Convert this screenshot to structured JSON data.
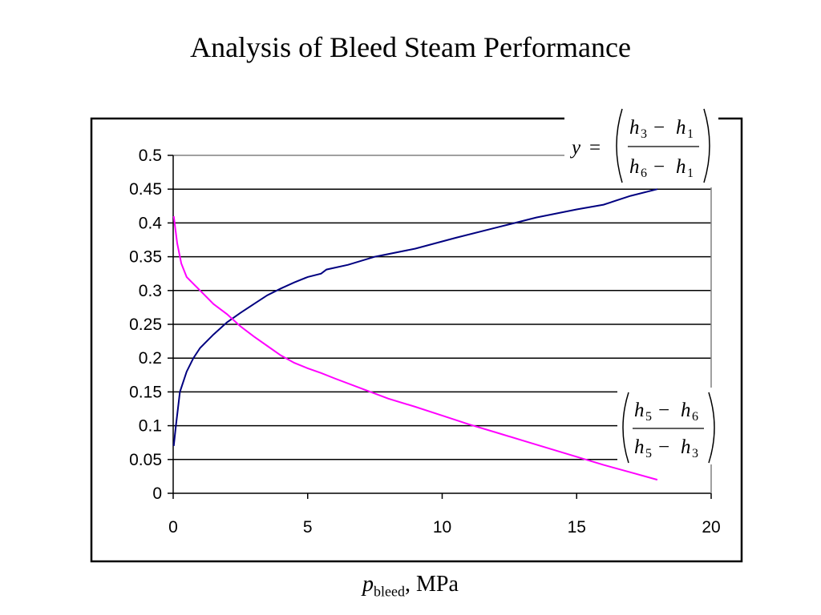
{
  "title": "Analysis of Bleed Steam Performance",
  "xlabel": {
    "var": "p",
    "sub": "bleed",
    "unit": ", MPa"
  },
  "chart_data": {
    "type": "line",
    "title": "Analysis of Bleed Steam Performance",
    "xlabel": "p_bleed, MPa",
    "ylabel": "",
    "xlim": [
      0,
      20
    ],
    "ylim": [
      0,
      0.5
    ],
    "x_ticks": [
      "0",
      "5",
      "10",
      "15",
      "20"
    ],
    "y_ticks": [
      "0",
      "0.05",
      "0.1",
      "0.15",
      "0.2",
      "0.25",
      "0.3",
      "0.35",
      "0.4",
      "0.45",
      "0.5"
    ],
    "grid": "horizontal",
    "series": [
      {
        "color": "#000080",
        "label_text": "y = ((h3 − h1) / (h6 − h1))",
        "points": [
          [
            0.02,
            0.07
          ],
          [
            0.1,
            0.1
          ],
          [
            0.25,
            0.15
          ],
          [
            0.5,
            0.18
          ],
          [
            0.75,
            0.2
          ],
          [
            1.0,
            0.215
          ],
          [
            1.5,
            0.235
          ],
          [
            2.0,
            0.253
          ],
          [
            2.5,
            0.267
          ],
          [
            3.0,
            0.28
          ],
          [
            3.5,
            0.293
          ],
          [
            4.0,
            0.303
          ],
          [
            4.5,
            0.312
          ],
          [
            5.0,
            0.32
          ],
          [
            5.5,
            0.325
          ],
          [
            5.7,
            0.331
          ],
          [
            6.5,
            0.338
          ],
          [
            7.5,
            0.35
          ],
          [
            9.0,
            0.362
          ],
          [
            10.5,
            0.378
          ],
          [
            12.0,
            0.393
          ],
          [
            13.5,
            0.408
          ],
          [
            15.0,
            0.42
          ],
          [
            16.0,
            0.427
          ],
          [
            17.0,
            0.44
          ],
          [
            18.0,
            0.45
          ]
        ]
      },
      {
        "color": "#ff00ff",
        "label_text": "((h5 − h6) / (h5 − h3))",
        "points": [
          [
            0.02,
            0.41
          ],
          [
            0.15,
            0.37
          ],
          [
            0.3,
            0.34
          ],
          [
            0.5,
            0.32
          ],
          [
            0.75,
            0.31
          ],
          [
            1.0,
            0.3
          ],
          [
            1.5,
            0.28
          ],
          [
            2.0,
            0.265
          ],
          [
            2.5,
            0.247
          ],
          [
            3.0,
            0.232
          ],
          [
            3.5,
            0.218
          ],
          [
            4.0,
            0.204
          ],
          [
            4.5,
            0.193
          ],
          [
            5.0,
            0.185
          ],
          [
            5.5,
            0.178
          ],
          [
            6.0,
            0.17
          ],
          [
            7.0,
            0.155
          ],
          [
            8.0,
            0.14
          ],
          [
            9.0,
            0.128
          ],
          [
            10.0,
            0.115
          ],
          [
            11.0,
            0.102
          ],
          [
            12.0,
            0.09
          ],
          [
            13.0,
            0.078
          ],
          [
            14.0,
            0.066
          ],
          [
            15.0,
            0.054
          ],
          [
            16.0,
            0.042
          ],
          [
            17.0,
            0.031
          ],
          [
            18.0,
            0.02
          ]
        ]
      }
    ]
  },
  "equations": {
    "top": {
      "y": "y",
      "eq": "=",
      "num_h": "h",
      "num_a": "3",
      "num_b": "1",
      "den_h": "h",
      "den_a": "6",
      "den_b": "1",
      "minus": "−"
    },
    "bottom": {
      "num_h": "h",
      "num_a": "5",
      "num_b": "6",
      "den_h": "h",
      "den_a": "5",
      "den_b": "3",
      "minus": "−"
    }
  }
}
